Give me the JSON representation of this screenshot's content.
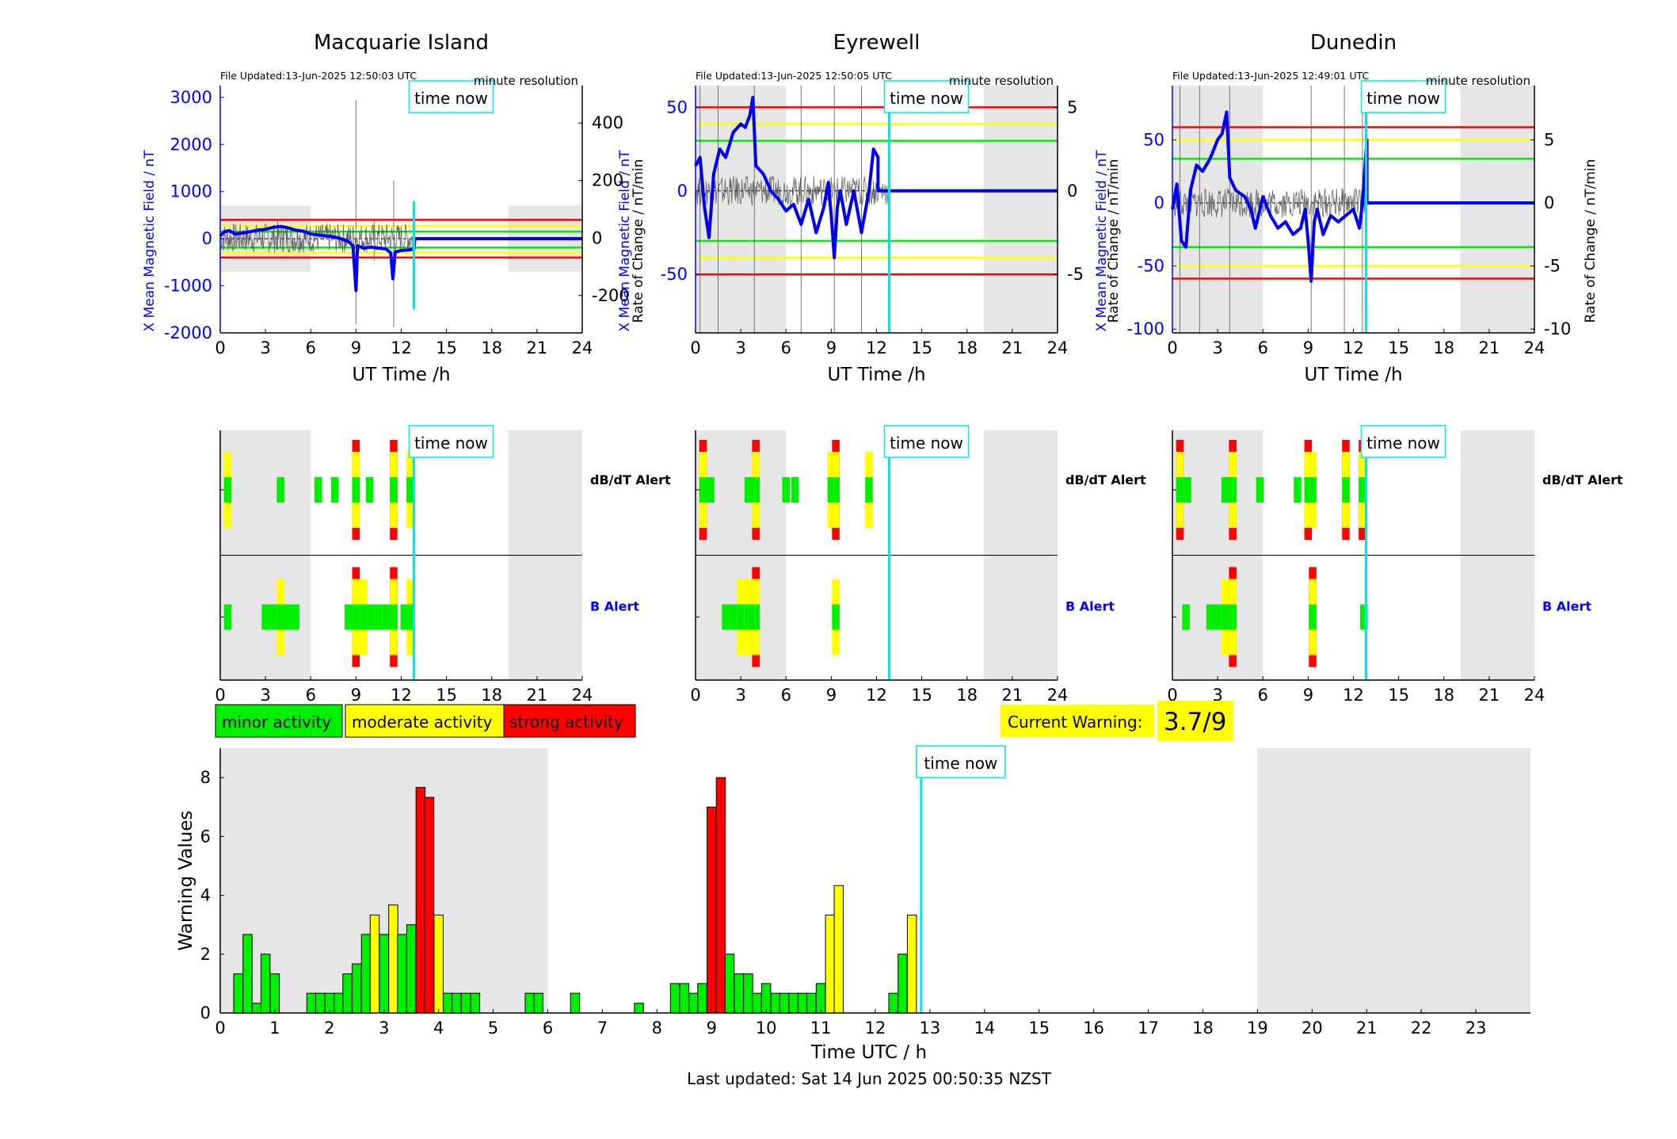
{
  "footer": {
    "last_updated": "Last updated: Sat 14 Jun 2025 00:50:35 NZST"
  },
  "time_now_label": "time now",
  "now_hour": 12.84,
  "legend": {
    "minor": "minor activity",
    "moderate": "moderate activity",
    "strong": "strong activity"
  },
  "current_warning": {
    "label": "Current Warning:",
    "value": "3.7/9"
  },
  "colors": {
    "minor": "#00ee00",
    "moderate": "#ffff00",
    "strong": "#ff0000",
    "now": "#00e5ee",
    "field": "#0000ee",
    "shade": "#e6e6e6"
  },
  "stations": [
    {
      "name": "Macquarie Island",
      "file_updated": "File Updated:13-Jun-2025 12:50:03 UTC",
      "resolution": "minute resolution",
      "left_label": "X Mean Magnetic Field / nT",
      "right_label": "Rate of Change / nT/min",
      "x_label": "UT Time /h",
      "y_left": {
        "min": -2000,
        "max": 3250,
        "ticks": [
          -2000,
          -1000,
          0,
          1000,
          2000,
          3000
        ]
      },
      "y_right": {
        "min": -330,
        "max": 530,
        "ticks": [
          -200,
          0,
          200,
          400
        ]
      },
      "night": [
        [
          0,
          6,
          -700,
          700
        ],
        [
          19.1,
          24,
          -700,
          700
        ]
      ],
      "thresholds": [
        {
          "y": 400,
          "c": "red"
        },
        {
          "y": 270,
          "c": "yellow"
        },
        {
          "y": 150,
          "c": "green"
        },
        {
          "y": -190,
          "c": "green"
        },
        {
          "y": -300,
          "c": "yellow"
        },
        {
          "y": -400,
          "c": "red"
        }
      ],
      "field": [
        [
          0,
          60
        ],
        [
          0.3,
          150
        ],
        [
          0.6,
          170
        ],
        [
          1,
          100
        ],
        [
          1.5,
          120
        ],
        [
          2,
          150
        ],
        [
          2.5,
          180
        ],
        [
          3,
          200
        ],
        [
          3.5,
          240
        ],
        [
          4,
          260
        ],
        [
          4.5,
          230
        ],
        [
          5,
          180
        ],
        [
          5.5,
          160
        ],
        [
          6,
          100
        ],
        [
          6.5,
          80
        ],
        [
          7,
          60
        ],
        [
          7.5,
          40
        ],
        [
          8,
          0
        ],
        [
          8.5,
          -60
        ],
        [
          8.8,
          -150
        ],
        [
          9,
          -1100
        ],
        [
          9.1,
          -150
        ],
        [
          9.5,
          -200
        ],
        [
          10,
          -180
        ],
        [
          10.5,
          -200
        ],
        [
          11,
          -220
        ],
        [
          11.3,
          -300
        ],
        [
          11.45,
          -850
        ],
        [
          11.6,
          -280
        ],
        [
          12,
          -250
        ],
        [
          12.5,
          -240
        ],
        [
          12.84,
          -220
        ],
        [
          12.9,
          0
        ],
        [
          24,
          0
        ]
      ],
      "rate_spikes": [
        [
          9,
          480,
          -300
        ],
        [
          11.5,
          200,
          -310
        ],
        [
          10.2,
          60,
          -80
        ],
        [
          3.8,
          60,
          -40
        ],
        [
          4.2,
          40,
          -40
        ]
      ],
      "dbdt": [
        [
          0.5,
          "m"
        ],
        [
          4,
          "n"
        ],
        [
          6.5,
          "n"
        ],
        [
          7.6,
          "n"
        ],
        [
          9,
          "s"
        ],
        [
          9.9,
          "n"
        ],
        [
          11.5,
          "s"
        ],
        [
          12.6,
          "m"
        ]
      ],
      "balert": [
        [
          0.5,
          "n"
        ],
        [
          3,
          "n"
        ],
        [
          3.5,
          "n"
        ],
        [
          4,
          "m"
        ],
        [
          4.5,
          "n"
        ],
        [
          5,
          "n"
        ],
        [
          8.5,
          "n"
        ],
        [
          9,
          "s"
        ],
        [
          9.5,
          "m"
        ],
        [
          10,
          "n"
        ],
        [
          10.5,
          "n"
        ],
        [
          11,
          "n"
        ],
        [
          11.5,
          "s"
        ],
        [
          12.2,
          "n"
        ],
        [
          12.6,
          "m"
        ]
      ],
      "dbdt_label": "dB/dT Alert",
      "b_label": "B Alert"
    },
    {
      "name": "Eyrewell",
      "file_updated": "File Updated:13-Jun-2025 12:50:05 UTC",
      "resolution": "minute resolution",
      "left_label": "X Mean Magnetic Field / nT",
      "right_label": "Rate of Change / nT/min",
      "x_label": "UT Time /h",
      "y_left": {
        "min": -85,
        "max": 63,
        "ticks": [
          -50,
          0,
          50
        ]
      },
      "y_right": {
        "min": -8.5,
        "max": 6.3,
        "ticks": [
          -5,
          0,
          5
        ]
      },
      "night": [
        [
          0,
          6,
          -85,
          63
        ],
        [
          19.1,
          24,
          -85,
          63
        ]
      ],
      "thresholds": [
        {
          "y": 50,
          "c": "red"
        },
        {
          "y": 40,
          "c": "yellow"
        },
        {
          "y": 30,
          "c": "green"
        },
        {
          "y": -30,
          "c": "green"
        },
        {
          "y": -40,
          "c": "yellow"
        },
        {
          "y": -50,
          "c": "red"
        }
      ],
      "field": [
        [
          0,
          15
        ],
        [
          0.3,
          20
        ],
        [
          0.6,
          -10
        ],
        [
          0.9,
          -28
        ],
        [
          1.2,
          10
        ],
        [
          1.6,
          25
        ],
        [
          2,
          20
        ],
        [
          2.5,
          35
        ],
        [
          3,
          40
        ],
        [
          3.3,
          38
        ],
        [
          3.6,
          45
        ],
        [
          3.8,
          56
        ],
        [
          4,
          15
        ],
        [
          4.5,
          10
        ],
        [
          5,
          0
        ],
        [
          5.5,
          -5
        ],
        [
          6,
          -12
        ],
        [
          6.5,
          -8
        ],
        [
          7,
          -20
        ],
        [
          7.5,
          -5
        ],
        [
          8,
          -25
        ],
        [
          8.5,
          -10
        ],
        [
          8.8,
          5
        ],
        [
          9,
          -15
        ],
        [
          9.2,
          -40
        ],
        [
          9.4,
          -10
        ],
        [
          9.6,
          0
        ],
        [
          10,
          -20
        ],
        [
          10.5,
          0
        ],
        [
          11,
          -25
        ],
        [
          11.5,
          0
        ],
        [
          11.8,
          25
        ],
        [
          12.1,
          20
        ],
        [
          12.1,
          0
        ],
        [
          24,
          0
        ]
      ],
      "rate_spikes": [
        [
          0.3,
          50,
          -70
        ],
        [
          1.5,
          30,
          -40
        ],
        [
          3.9,
          60,
          -60
        ],
        [
          7,
          40,
          -30
        ],
        [
          9.2,
          20,
          -50
        ],
        [
          11,
          50,
          -20
        ]
      ],
      "dbdt": [
        [
          0.5,
          "s"
        ],
        [
          1,
          "n"
        ],
        [
          3.5,
          "n"
        ],
        [
          4,
          "s"
        ],
        [
          6,
          "n"
        ],
        [
          6.6,
          "n"
        ],
        [
          9,
          "m"
        ],
        [
          9.3,
          "s"
        ],
        [
          11.5,
          "m"
        ]
      ],
      "balert": [
        [
          2,
          "n"
        ],
        [
          2.5,
          "n"
        ],
        [
          3,
          "m"
        ],
        [
          3.5,
          "m"
        ],
        [
          4,
          "s"
        ],
        [
          9.3,
          "m"
        ]
      ],
      "dbdt_label": "dB/dT Alert",
      "b_label": "B Alert"
    },
    {
      "name": "Dunedin",
      "file_updated": "File Updated:13-Jun-2025 12:49:01 UTC",
      "resolution": "minute resolution",
      "left_label": "X Mean Magnetic Field / nT",
      "right_label": "Rate of Change / nT/min",
      "x_label": "UT Time /h",
      "y_left": {
        "min": -103,
        "max": 93,
        "ticks": [
          -100,
          -50,
          0,
          50
        ]
      },
      "y_right": {
        "min": -10.3,
        "max": 9.3,
        "ticks": [
          -10,
          -5,
          0,
          5
        ]
      },
      "night": [
        [
          0,
          6,
          -103,
          93
        ],
        [
          19.1,
          24,
          -103,
          93
        ]
      ],
      "thresholds": [
        {
          "y": 60,
          "c": "red"
        },
        {
          "y": 50,
          "c": "yellow"
        },
        {
          "y": 35,
          "c": "green"
        },
        {
          "y": -35,
          "c": "green"
        },
        {
          "y": -50,
          "c": "yellow"
        },
        {
          "y": -60,
          "c": "red"
        }
      ],
      "field": [
        [
          0,
          -5
        ],
        [
          0.3,
          15
        ],
        [
          0.6,
          -30
        ],
        [
          0.9,
          -35
        ],
        [
          1.2,
          10
        ],
        [
          1.6,
          30
        ],
        [
          2,
          25
        ],
        [
          2.5,
          35
        ],
        [
          3,
          50
        ],
        [
          3.3,
          55
        ],
        [
          3.6,
          72
        ],
        [
          3.8,
          20
        ],
        [
          4.2,
          10
        ],
        [
          4.8,
          5
        ],
        [
          5.2,
          -5
        ],
        [
          5.5,
          -20
        ],
        [
          6,
          5
        ],
        [
          6.5,
          -10
        ],
        [
          7,
          -20
        ],
        [
          7.5,
          -15
        ],
        [
          8,
          -25
        ],
        [
          8.5,
          -20
        ],
        [
          8.8,
          -5
        ],
        [
          9,
          -30
        ],
        [
          9.2,
          -62
        ],
        [
          9.4,
          -15
        ],
        [
          9.6,
          -5
        ],
        [
          10,
          -25
        ],
        [
          10.5,
          -10
        ],
        [
          11,
          -15
        ],
        [
          11.5,
          -10
        ],
        [
          12,
          -5
        ],
        [
          12.4,
          -20
        ],
        [
          12.6,
          0
        ],
        [
          12.9,
          50
        ],
        [
          12.9,
          0
        ],
        [
          24,
          0
        ]
      ],
      "rate_spikes": [
        [
          0.5,
          60,
          -95
        ],
        [
          1.8,
          50,
          -50
        ],
        [
          3.8,
          70,
          -90
        ],
        [
          9.2,
          90,
          -80
        ],
        [
          11.4,
          70,
          -30
        ],
        [
          12.6,
          50,
          -30
        ]
      ],
      "dbdt": [
        [
          0.5,
          "s"
        ],
        [
          1,
          "n"
        ],
        [
          3.5,
          "n"
        ],
        [
          4,
          "s"
        ],
        [
          5.8,
          "n"
        ],
        [
          8.3,
          "n"
        ],
        [
          9,
          "s"
        ],
        [
          9.3,
          "m"
        ],
        [
          11.5,
          "s"
        ],
        [
          12.6,
          "s"
        ]
      ],
      "balert": [
        [
          0.9,
          "n"
        ],
        [
          2.5,
          "n"
        ],
        [
          3,
          "n"
        ],
        [
          3.5,
          "m"
        ],
        [
          4,
          "s"
        ],
        [
          9.3,
          "s"
        ],
        [
          12.7,
          "n"
        ]
      ],
      "dbdt_label": "dB/dT Alert",
      "b_label": "B Alert"
    }
  ],
  "chart_data": {
    "type": "bar",
    "xlabel": "Time UTC / h",
    "ylabel": "Warning Values",
    "xlim": [
      0,
      24
    ],
    "ylim": [
      0,
      9
    ],
    "night_shading": [
      [
        0,
        6
      ],
      [
        19,
        24
      ]
    ],
    "bin_width_h": 0.1667,
    "values": [
      [
        0.33,
        1.33,
        "minor"
      ],
      [
        0.5,
        2.67,
        "minor"
      ],
      [
        0.67,
        0.33,
        "minor"
      ],
      [
        0.83,
        2.0,
        "minor"
      ],
      [
        1.0,
        1.33,
        "minor"
      ],
      [
        1.67,
        0.67,
        "minor"
      ],
      [
        1.83,
        0.67,
        "minor"
      ],
      [
        2.0,
        0.67,
        "minor"
      ],
      [
        2.17,
        0.67,
        "minor"
      ],
      [
        2.33,
        1.33,
        "minor"
      ],
      [
        2.5,
        1.67,
        "minor"
      ],
      [
        2.67,
        2.67,
        "minor"
      ],
      [
        2.83,
        3.33,
        "moderate"
      ],
      [
        3.0,
        2.67,
        "minor"
      ],
      [
        3.17,
        3.67,
        "moderate"
      ],
      [
        3.33,
        2.67,
        "minor"
      ],
      [
        3.5,
        3.0,
        "minor"
      ],
      [
        3.67,
        7.67,
        "strong"
      ],
      [
        3.83,
        7.33,
        "strong"
      ],
      [
        4.0,
        3.33,
        "moderate"
      ],
      [
        4.17,
        0.67,
        "minor"
      ],
      [
        4.33,
        0.67,
        "minor"
      ],
      [
        4.5,
        0.67,
        "minor"
      ],
      [
        4.67,
        0.67,
        "minor"
      ],
      [
        5.67,
        0.67,
        "minor"
      ],
      [
        5.83,
        0.67,
        "minor"
      ],
      [
        6.5,
        0.67,
        "minor"
      ],
      [
        7.67,
        0.33,
        "minor"
      ],
      [
        8.33,
        1.0,
        "minor"
      ],
      [
        8.5,
        1.0,
        "minor"
      ],
      [
        8.67,
        0.67,
        "minor"
      ],
      [
        8.83,
        1.0,
        "minor"
      ],
      [
        9.0,
        7.0,
        "strong"
      ],
      [
        9.17,
        8.0,
        "strong"
      ],
      [
        9.33,
        2.0,
        "minor"
      ],
      [
        9.5,
        1.33,
        "minor"
      ],
      [
        9.67,
        1.33,
        "minor"
      ],
      [
        9.83,
        0.67,
        "minor"
      ],
      [
        10.0,
        1.0,
        "minor"
      ],
      [
        10.17,
        0.67,
        "minor"
      ],
      [
        10.33,
        0.67,
        "minor"
      ],
      [
        10.5,
        0.67,
        "minor"
      ],
      [
        10.67,
        0.67,
        "minor"
      ],
      [
        10.83,
        0.67,
        "minor"
      ],
      [
        11.0,
        1.0,
        "minor"
      ],
      [
        11.17,
        3.33,
        "moderate"
      ],
      [
        11.33,
        4.33,
        "moderate"
      ],
      [
        12.33,
        0.67,
        "minor"
      ],
      [
        12.5,
        2.0,
        "minor"
      ],
      [
        12.67,
        3.33,
        "moderate"
      ]
    ]
  }
}
